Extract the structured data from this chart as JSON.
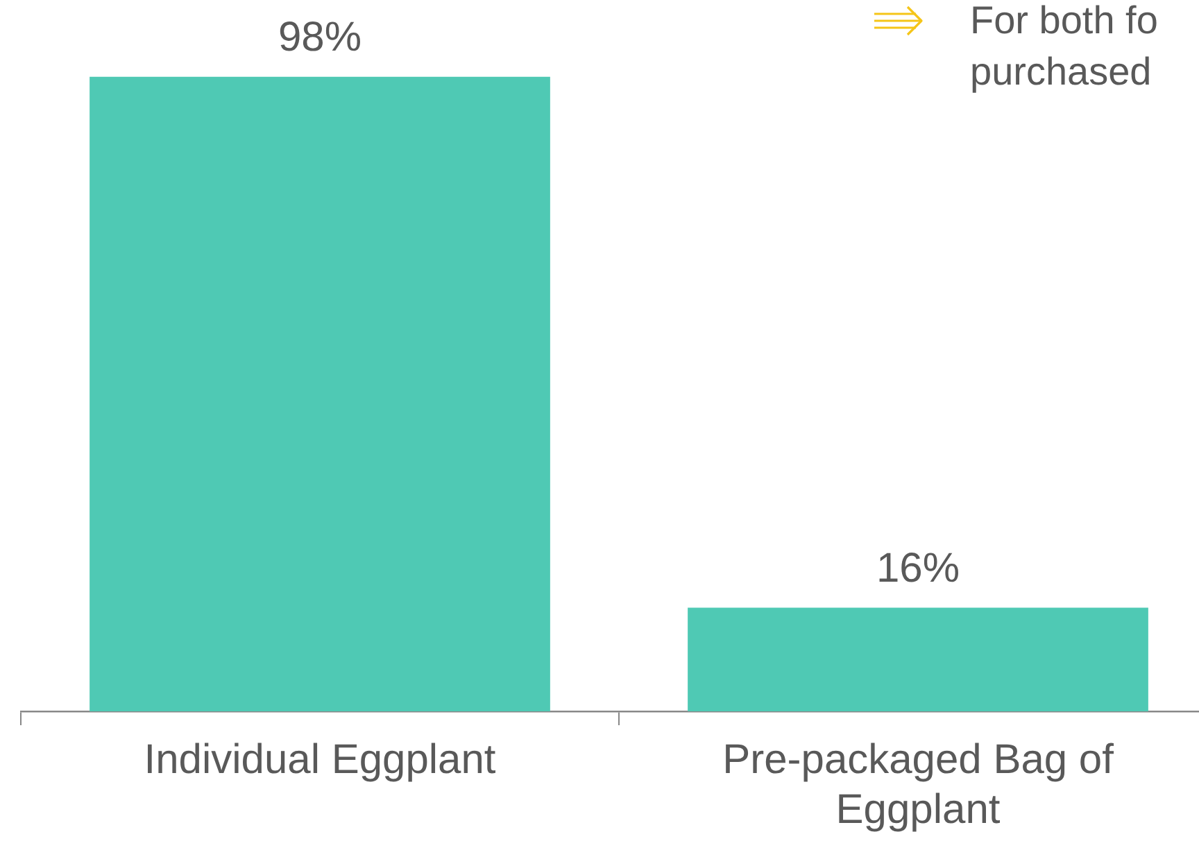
{
  "chart_data": {
    "type": "bar",
    "categories": [
      [
        "Individual Eggplant"
      ],
      [
        "Pre-packaged Bag of",
        "Eggplant"
      ]
    ],
    "values": [
      98,
      16
    ],
    "value_labels": [
      "98%",
      "16%"
    ],
    "color": "#4fc9b4",
    "grid": false,
    "legend": false,
    "annotations": [
      "For both fo\npurchased"
    ]
  }
}
